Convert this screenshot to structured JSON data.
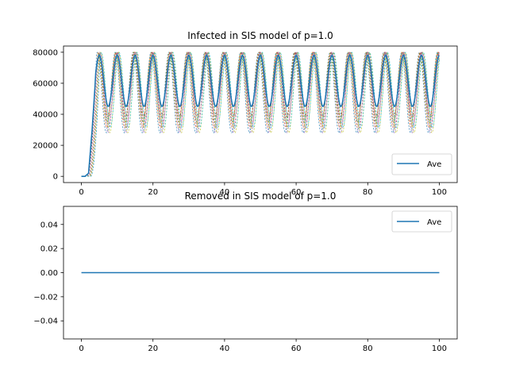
{
  "chart_data": [
    {
      "type": "line",
      "title": "Infected in SIS model of p=1.0",
      "xlabel": "",
      "ylabel": "",
      "xlim": [
        -5,
        105
      ],
      "ylim": [
        -4000,
        84000
      ],
      "x_ticks": [
        0,
        20,
        40,
        60,
        80,
        100
      ],
      "y_ticks": [
        0,
        20000,
        40000,
        60000,
        80000
      ],
      "x_tick_labels": [
        "0",
        "20",
        "40",
        "60",
        "80",
        "100"
      ],
      "y_tick_labels": [
        "0",
        "20000",
        "40000",
        "60000",
        "80000"
      ],
      "legend": {
        "position": "lower-right",
        "entries": [
          "Ave"
        ]
      },
      "grid": false,
      "series": [
        {
          "name": "Ave",
          "style": "solid",
          "color": "#1f77b4"
        }
      ],
      "runs_style": "dashed",
      "run_colors": [
        "#1f77b4",
        "#ff7f0e",
        "#2ca02c",
        "#d62728",
        "#9467bd",
        "#8c564b",
        "#e377c2",
        "#7f7f7f",
        "#bcbd22",
        "#17becf"
      ],
      "ave_profile": {
        "x": [
          0,
          1,
          2,
          3,
          4,
          5,
          6,
          7,
          8
        ],
        "y": [
          0,
          0,
          2000,
          30000,
          65000,
          78000,
          60000,
          46000,
          78000
        ],
        "oscillation": {
          "period": 5.0,
          "min": 45000,
          "max": 78000,
          "until_x": 100
        }
      },
      "runs_envelope": {
        "min": 28000,
        "max": 80000
      }
    },
    {
      "type": "line",
      "title": "Removed in SIS model of p=1.0",
      "xlabel": "",
      "ylabel": "",
      "xlim": [
        -5,
        105
      ],
      "ylim": [
        -0.055,
        0.055
      ],
      "x_ticks": [
        0,
        20,
        40,
        60,
        80,
        100
      ],
      "y_ticks": [
        -0.04,
        -0.02,
        0.0,
        0.02,
        0.04
      ],
      "x_tick_labels": [
        "0",
        "20",
        "40",
        "60",
        "80",
        "100"
      ],
      "y_tick_labels": [
        "−0.04",
        "−0.02",
        "0.00",
        "0.02",
        "0.04"
      ],
      "legend": {
        "position": "upper-right",
        "entries": [
          "Ave"
        ]
      },
      "grid": false,
      "series": [
        {
          "name": "Ave",
          "style": "solid",
          "color": "#1f77b4",
          "x": [
            0,
            100
          ],
          "values": [
            0,
            0
          ]
        }
      ]
    }
  ]
}
